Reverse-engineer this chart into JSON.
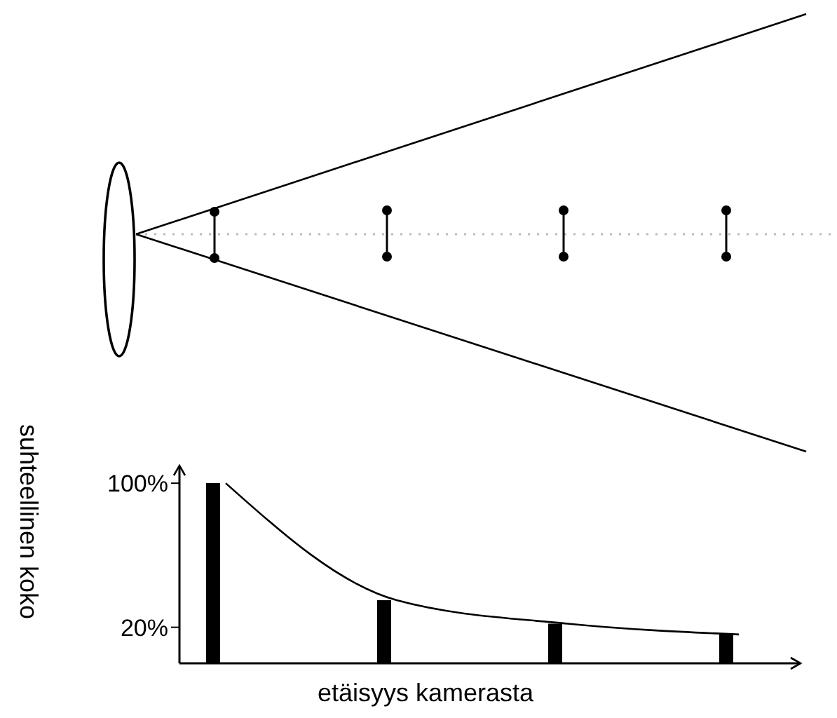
{
  "chart_data": {
    "type": "bar",
    "xlabel": "etäisyys kamerasta",
    "ylabel": "suhteellinen koko",
    "categories": [
      null,
      null,
      null,
      null
    ],
    "series": [
      {
        "color": "#000000",
        "values": [
          100,
          35,
          22,
          16
        ]
      },
      {
        "type": "line",
        "color": "#000000",
        "values": [
          100,
          35,
          22,
          16
        ]
      }
    ],
    "ylim": [
      0,
      109
    ],
    "yticks": [
      {
        "value": 100,
        "label": "100%"
      },
      {
        "value": 20,
        "label": "20%"
      }
    ],
    "marker": "none",
    "line_style": "solid"
  }
}
